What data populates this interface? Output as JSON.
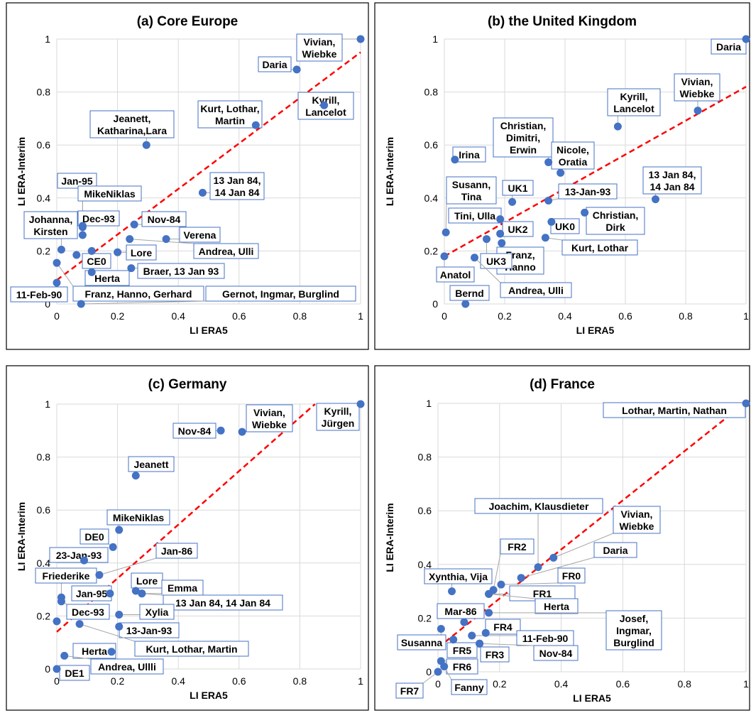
{
  "chart_data": [
    {
      "type": "scatter",
      "title": "(a) Core Europe",
      "xlabel": "LI ERA5",
      "ylabel": "LI ERA-Interim",
      "xlim": [
        0,
        1
      ],
      "ylim": [
        0,
        1
      ],
      "xticks": [
        "0",
        "0.2",
        "0.4",
        "0.6",
        "0.8",
        "1"
      ],
      "yticks": [
        "0",
        "0.2",
        "0.4",
        "0.6",
        "0.8",
        "1"
      ],
      "trend": {
        "x": [
          0,
          1
        ],
        "y": [
          0.09,
          0.95
        ]
      },
      "points": [
        {
          "label": "Vivian,\nWiebke",
          "x": 1.0,
          "y": 1.0
        },
        {
          "label": "Daria",
          "x": 0.79,
          "y": 0.885
        },
        {
          "label": "Kyrill,\nLancelot",
          "x": 0.88,
          "y": 0.75
        },
        {
          "label": "Kurt, Lothar,\nMartin",
          "x": 0.655,
          "y": 0.675
        },
        {
          "label": "Jeanett,\nKatharina,Lara",
          "x": 0.295,
          "y": 0.6
        },
        {
          "label": "13 Jan 84,\n14 Jan 84",
          "x": 0.48,
          "y": 0.42
        },
        {
          "label": "Jan-95",
          "x": 0.085,
          "y": 0.29
        },
        {
          "label": "MikeNiklas",
          "x": 0.085,
          "y": 0.295
        },
        {
          "label": "Dec-93",
          "x": 0.085,
          "y": 0.26
        },
        {
          "label": "Nov-84",
          "x": 0.255,
          "y": 0.3
        },
        {
          "label": "Verena",
          "x": 0.36,
          "y": 0.245
        },
        {
          "label": "Johanna,\nKirsten",
          "x": 0.015,
          "y": 0.205
        },
        {
          "label": "Andrea, Ulli",
          "x": 0.24,
          "y": 0.245
        },
        {
          "label": "Lore",
          "x": 0.2,
          "y": 0.195
        },
        {
          "label": "CE0",
          "x": 0.115,
          "y": 0.2
        },
        {
          "label": "Braer, 13 Jan 93",
          "x": 0.245,
          "y": 0.135
        },
        {
          "label": "Herta",
          "x": 0.115,
          "y": 0.12
        },
        {
          "label": "11-Feb-90",
          "x": 0.0,
          "y": 0.08
        },
        {
          "label": "Franz, Hanno, Gerhard",
          "x": 0.0,
          "y": 0.155
        },
        {
          "label": "Gernot, Ingmar, Burglind",
          "x": 0.08,
          "y": 0.0
        },
        {
          "label": "",
          "x": 0.065,
          "y": 0.185
        }
      ]
    },
    {
      "type": "scatter",
      "title": "(b) the United Kingdom",
      "xlabel": "LI ERA5",
      "ylabel": "LI ERA-Interim",
      "xlim": [
        0,
        1
      ],
      "ylim": [
        0,
        1
      ],
      "xticks": [
        "0",
        "0.2",
        "0.4",
        "0.6",
        "0.8",
        "1"
      ],
      "yticks": [
        "0",
        "0.2",
        "0.4",
        "0.6",
        "0.8",
        "1"
      ],
      "trend": {
        "x": [
          0,
          1
        ],
        "y": [
          0.18,
          0.82
        ]
      },
      "points": [
        {
          "label": "Daria",
          "x": 1.0,
          "y": 1.0
        },
        {
          "label": "Vivian,\nWiebke",
          "x": 0.84,
          "y": 0.73
        },
        {
          "label": "Kyrill,\nLancelot",
          "x": 0.575,
          "y": 0.67
        },
        {
          "label": "Christian,\nDimitri,\nErwin",
          "x": 0.345,
          "y": 0.535
        },
        {
          "label": "Irina",
          "x": 0.035,
          "y": 0.545,
          "highlight": "#ff0000"
        },
        {
          "label": "Nicole,\nOratia",
          "x": 0.385,
          "y": 0.495
        },
        {
          "label": "13 Jan 84,\n14 Jan 84",
          "x": 0.7,
          "y": 0.395
        },
        {
          "label": "13-Jan-93",
          "x": 0.345,
          "y": 0.39
        },
        {
          "label": "UK1",
          "x": 0.225,
          "y": 0.385
        },
        {
          "label": "Susann,\nTina",
          "x": 0.005,
          "y": 0.27
        },
        {
          "label": "Christian,\nDirk",
          "x": 0.465,
          "y": 0.345
        },
        {
          "label": "Tini, Ulla",
          "x": 0.185,
          "y": 0.32
        },
        {
          "label": "UK0",
          "x": 0.355,
          "y": 0.31
        },
        {
          "label": "UK2",
          "x": 0.185,
          "y": 0.265
        },
        {
          "label": "Kurt, Lothar",
          "x": 0.335,
          "y": 0.25
        },
        {
          "label": "Franz,\nHanno",
          "x": 0.19,
          "y": 0.23
        },
        {
          "label": "UK3",
          "x": 0.14,
          "y": 0.245
        },
        {
          "label": "Anatol",
          "x": 0.0,
          "y": 0.18
        },
        {
          "label": "Andrea, Ulli",
          "x": 0.1,
          "y": 0.175
        },
        {
          "label": "Bernd",
          "x": 0.07,
          "y": 0.0
        }
      ]
    },
    {
      "type": "scatter",
      "title": "(c) Germany",
      "xlabel": "LI ERA5",
      "ylabel": "LI ERA-Interim",
      "xlim": [
        0,
        1
      ],
      "ylim": [
        0,
        1
      ],
      "xticks": [
        "0",
        "0.2",
        "0.4",
        "0.6",
        "0.8",
        "1"
      ],
      "yticks": [
        "0",
        "0.2",
        "0.4",
        "0.6",
        "0.8",
        "1"
      ],
      "trend": {
        "x": [
          0,
          0.85
        ],
        "y": [
          0.14,
          1.0
        ]
      },
      "points": [
        {
          "label": "Kyrill,\nJürgen",
          "x": 1.0,
          "y": 1.0
        },
        {
          "label": "Nov-84",
          "x": 0.54,
          "y": 0.9
        },
        {
          "label": "Vivian,\nWiebke",
          "x": 0.61,
          "y": 0.895
        },
        {
          "label": "Jeanett",
          "x": 0.26,
          "y": 0.73
        },
        {
          "label": "MikeNiklas",
          "x": 0.205,
          "y": 0.525
        },
        {
          "label": "DE0",
          "x": 0.185,
          "y": 0.46
        },
        {
          "label": "23-Jan-93",
          "x": 0.09,
          "y": 0.41
        },
        {
          "label": "Jan-86",
          "x": 0.14,
          "y": 0.355
        },
        {
          "label": "Friederike",
          "x": 0.015,
          "y": 0.27
        },
        {
          "label": "Jan-95",
          "x": 0.175,
          "y": 0.285
        },
        {
          "label": "Lore",
          "x": 0.26,
          "y": 0.295
        },
        {
          "label": "Emma",
          "x": 0.28,
          "y": 0.285
        },
        {
          "label": "13 Jan 84, 14 Jan 84",
          "x": 0.28,
          "y": 0.285
        },
        {
          "label": "Dec-93",
          "x": 0.015,
          "y": 0.255
        },
        {
          "label": "Xylia",
          "x": 0.205,
          "y": 0.205
        },
        {
          "label": "13-Jan-93",
          "x": 0.205,
          "y": 0.16
        },
        {
          "label": "Kurt, Lothar, Martin",
          "x": 0.075,
          "y": 0.17
        },
        {
          "label": "Herta",
          "x": 0.18,
          "y": 0.065
        },
        {
          "label": "Andrea, Ullli",
          "x": 0.025,
          "y": 0.05
        },
        {
          "label": "DE1",
          "x": 0.0,
          "y": 0.0
        },
        {
          "label": "",
          "x": 0.0,
          "y": 0.18
        }
      ]
    },
    {
      "type": "scatter",
      "title": "(d) France",
      "xlabel": "LI ERA5",
      "ylabel": "LI ERA-Interim",
      "xlim": [
        0,
        1
      ],
      "ylim": [
        0,
        1
      ],
      "xticks": [
        "0",
        "0.2",
        "0.4",
        "0.6",
        "0.8",
        "1"
      ],
      "yticks": [
        "0",
        "0.2",
        "0.4",
        "0.6",
        "0.8",
        "1"
      ],
      "trend": {
        "x": [
          0,
          0.995
        ],
        "y": [
          0.09,
          1.0
        ]
      },
      "points": [
        {
          "label": "Lothar, Martin, Nathan",
          "x": 1.0,
          "y": 1.0
        },
        {
          "label": "Joachim, Klausdieter",
          "x": 0.325,
          "y": 0.39
        },
        {
          "label": "Vivian,\nWiebke",
          "x": 0.375,
          "y": 0.425
        },
        {
          "label": "Daria",
          "x": 0.27,
          "y": 0.35
        },
        {
          "label": "FR2",
          "x": 0.18,
          "y": 0.305
        },
        {
          "label": "FR0",
          "x": 0.205,
          "y": 0.325
        },
        {
          "label": "Xynthia, Vija",
          "x": 0.045,
          "y": 0.3
        },
        {
          "label": "FR1",
          "x": 0.165,
          "y": 0.29
        },
        {
          "label": "Herta",
          "x": 0.165,
          "y": 0.29
        },
        {
          "label": "Josef,\nIngmar,\nBurglind",
          "x": 0.165,
          "y": 0.22
        },
        {
          "label": "Mar-86",
          "x": 0.085,
          "y": 0.185
        },
        {
          "label": "FR4",
          "x": 0.155,
          "y": 0.145
        },
        {
          "label": "11-Feb-90",
          "x": 0.11,
          "y": 0.135
        },
        {
          "label": "Susanna",
          "x": 0.01,
          "y": 0.16
        },
        {
          "label": "FR5",
          "x": 0.05,
          "y": 0.12
        },
        {
          "label": "FR3",
          "x": 0.135,
          "y": 0.105
        },
        {
          "label": "Nov-84",
          "x": 0.135,
          "y": 0.105
        },
        {
          "label": "FR6",
          "x": 0.01,
          "y": 0.04
        },
        {
          "label": "Fanny",
          "x": 0.02,
          "y": 0.02
        },
        {
          "label": "FR7",
          "x": 0.0,
          "y": 0.0
        }
      ]
    }
  ]
}
